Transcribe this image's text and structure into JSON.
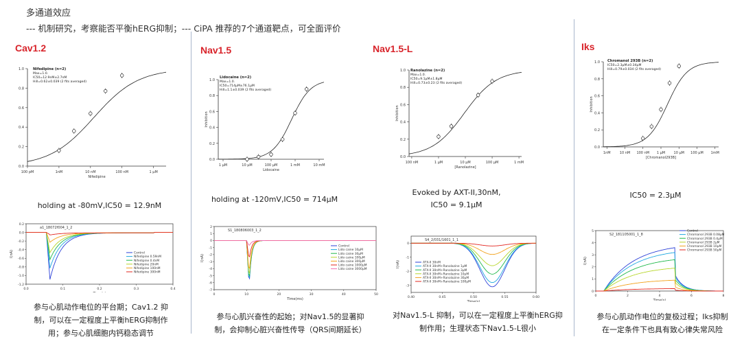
{
  "header": {
    "title": "多通道效应",
    "subtitle": "--- 机制研究，考察能否平衡hERG抑制；--- CiPA 推荐的7个通道靶点，可全面评价"
  },
  "panels": [
    {
      "title": "Cav1.2",
      "caption": [
        "holding at -80mV,IC50 = 12.9nM"
      ],
      "description": [
        "参与心肌动作电位的平台期；Cav1.2 抑",
        "制，可以在一定程度上平衡hERG抑制作",
        "用；参与心肌细胞内钙稳态调节"
      ]
    },
    {
      "title": "Nav1.5",
      "caption": [
        "holding at -120mV,IC50 = 714μM"
      ],
      "description": [
        "参与心肌兴奋性的起始；对Nav1.5的显著抑",
        "制，会抑制心脏兴奋性传导（QRS间期延长）"
      ]
    },
    {
      "title": "Nav1.5-L",
      "caption": [
        "Evoked by AXT-II,30nM,",
        "IC50 = 9.1μM"
      ],
      "description": [
        "对Nav1.5-L 抑制，可以在一定程度上平衡hERG抑",
        "制作用；生理状态下Nav1.5-L很小"
      ]
    },
    {
      "title": "Iks",
      "caption": [
        "IC50 = 2.3μM"
      ],
      "description": [
        "参与心肌动作电位的复极过程；Iks抑制",
        "在一定条件下也具有致心律失常风险"
      ]
    }
  ],
  "chart_data": [
    {
      "type": "scatter",
      "panel": "Cav1.2",
      "fit": "hill",
      "x_scale": "log",
      "xlabel": "Nifedipine",
      "x_tick_labels": [
        "100 pM",
        "1nM",
        "10 nM",
        "100 nM",
        "1 μM"
      ],
      "y_tick_labels": [
        "0.0",
        "0.2",
        "0.4",
        "0.6",
        "0.8",
        "1.0"
      ],
      "ylim": [
        0,
        1
      ],
      "legend_lines": [
        "Nifedipine (n=2)",
        "Max=1.0.",
        "IC50=12.9nM±2.7nM",
        "Hill=0.62±0.039 (2 fits averaged)"
      ],
      "x": [
        "1nM",
        "3nM",
        "10nM",
        "30nM",
        "100nM"
      ],
      "y": [
        0.16,
        0.36,
        0.54,
        0.77,
        0.93
      ],
      "ic50": "12.9nM",
      "hill": 0.62
    },
    {
      "type": "scatter",
      "panel": "Nav1.5",
      "fit": "hill",
      "x_scale": "log",
      "xlabel": "Lidocaine",
      "ylabel": "Inhibition",
      "x_tick_labels": [
        "1 μM",
        "10 μM",
        "100 μM",
        "1 mM",
        "10 mM"
      ],
      "y_tick_labels": [
        "0.0",
        "0.2",
        "0.4",
        "0.6",
        "0.8",
        "1.0"
      ],
      "ylim": [
        0,
        1
      ],
      "legend_lines": [
        "Lidocaine (n=2)",
        "Max=1.0.",
        "IC50=714μM±76.1μM",
        "Hill=1.1±0.039 (2 fits averaged)"
      ],
      "x": [
        "10μM",
        "30μM",
        "100μM",
        "300μM",
        "1000μM",
        "3000μM"
      ],
      "y": [
        0.0,
        0.03,
        0.06,
        0.25,
        0.58,
        0.88
      ],
      "ic50": "714μM",
      "hill": 1.1
    },
    {
      "type": "scatter",
      "panel": "Nav1.5-L",
      "fit": "hill",
      "x_scale": "log",
      "xlabel": "[Ranolazine]",
      "ylabel": "Inhibition",
      "x_tick_labels": [
        "100 nM",
        "1 μM",
        "10 μM",
        "100 μM",
        "1 mM"
      ],
      "y_tick_labels": [
        "0.0",
        "0.2",
        "0.4",
        "0.6",
        "0.8",
        "1.0"
      ],
      "ylim": [
        0,
        1
      ],
      "legend_lines": [
        "Ranolazine (n=2)",
        "Max=1.0.",
        "IC50=9.1μM±1.8μM",
        "Hill=0.73±0.23 (2 fits averaged)"
      ],
      "x": [
        "1μM",
        "3μM",
        "30μM",
        "100μM"
      ],
      "y": [
        0.23,
        0.35,
        0.71,
        0.87
      ],
      "ic50": "9.1μM",
      "hill": 0.73
    },
    {
      "type": "scatter",
      "panel": "Iks",
      "fit": "hill",
      "x_scale": "log",
      "xlabel": "[Chromanol293B]",
      "ylabel": "Inhibition",
      "x_tick_labels": [
        "1nM",
        "10 nM",
        "100 nM",
        "1 μM",
        "10 μM",
        "100 μM",
        "1mM"
      ],
      "y_tick_labels": [
        "0.0",
        "0.2",
        "0.4",
        "0.6",
        "0.8",
        "1.0"
      ],
      "ylim": [
        0,
        1
      ],
      "legend_lines": [
        "Chromanol 293B (n=2)",
        "IC50=2.3μM±0.34μM",
        "Hill=0.79±0.034 (2 fits averaged)"
      ],
      "x": [
        "100nM",
        "300nM",
        "1μM",
        "3μM",
        "10μM"
      ],
      "y": [
        0.1,
        0.24,
        0.44,
        0.75,
        0.95
      ],
      "ic50": "2.3μM",
      "hill": 0.79
    },
    {
      "type": "line",
      "panel": "Cav1.2",
      "title": "a1_18072f004_1_2",
      "xlabel": "Time(s)",
      "ylabel": "I(nA)",
      "xlim": [
        0,
        0.4
      ],
      "ylim": [
        -1.2,
        0.2
      ],
      "x_tick_labels": [
        "0.0",
        "0.1",
        "0.2",
        "0.3",
        "0.4"
      ],
      "y_tick_labels": [
        "0.2",
        "0.0",
        "-0.2",
        "-0.4",
        "-0.6",
        "-0.8",
        "-1.0",
        "-1.2"
      ],
      "series": [
        {
          "name": "Control",
          "color": "#2a3fd8",
          "peak": -1.08
        },
        {
          "name": "Nifedipine 0.59nM",
          "color": "#1ea8e0",
          "peak": -0.82
        },
        {
          "name": "Nifedipine 0.4nM",
          "color": "#1fb84a",
          "peak": -0.62
        },
        {
          "name": "Nifedipine 20nM",
          "color": "#b7d62a",
          "peak": -0.46
        },
        {
          "name": "Nifedipine 100nM",
          "color": "#f2a11a",
          "peak": -0.22
        },
        {
          "name": "Nifedipine 300nM",
          "color": "#e2241e",
          "peak": -0.05
        }
      ]
    },
    {
      "type": "line",
      "panel": "Nav1.5",
      "title": "S1_180806003_1_2",
      "xlabel": "Time(ms)",
      "ylabel": "I(nA)",
      "xlim": [
        0,
        50
      ],
      "ylim": [
        -7,
        2
      ],
      "x_tick_labels": [
        "0",
        "10",
        "20",
        "30",
        "40",
        "50"
      ],
      "y_tick_labels": [
        "2",
        "1",
        "0",
        "-1",
        "-2",
        "-3",
        "-4",
        "-5",
        "-6",
        "-7"
      ],
      "series": [
        {
          "name": "Control",
          "color": "#2a3fd8",
          "peak": -6.6
        },
        {
          "name": "Lido caine 10μM",
          "color": "#1ea8e0",
          "peak": -6.4
        },
        {
          "name": "Lido caine 30μM",
          "color": "#1fb84a",
          "peak": -6.1
        },
        {
          "name": "Lido caine 100μM",
          "color": "#b7d62a",
          "peak": -5.6
        },
        {
          "name": "Lido caine 300μM",
          "color": "#f2a11a",
          "peak": -4.8
        },
        {
          "name": "Lido caine 1000μM",
          "color": "#e2241e",
          "peak": -2.8
        },
        {
          "name": "Lido caine 3000μM",
          "color": "#f06fb0",
          "peak": -0.8
        }
      ]
    },
    {
      "type": "line",
      "panel": "Nav1.5-L",
      "title": "S4_2/031/1601_1_1",
      "xlabel": "Time(s)",
      "ylabel": "I(nA)",
      "xlim": [
        0.4,
        0.6
      ],
      "ylim": [
        -3.5,
        0.5
      ],
      "x_tick_labels": [
        "0.40",
        "0.45",
        "0.50",
        "0.55",
        "0.60"
      ],
      "y_tick_labels": [
        "0",
        "-1",
        "-2",
        "-3"
      ],
      "series": [
        {
          "name": "ATX-II 30nM",
          "color": "#2a3fd8",
          "peak": -3.1
        },
        {
          "name": "ATX-II 30nM+Ranolazine 1μM",
          "color": "#1ea8e0",
          "peak": -2.8
        },
        {
          "name": "ATX-II 30nM+Ranolazine 3μM",
          "color": "#1fb84a",
          "peak": -2.2
        },
        {
          "name": "ATX-II 30nM+Ranolazine 10μM",
          "color": "#b7d62a",
          "peak": -1.6
        },
        {
          "name": "ATX-II 30nM+Ranolazine 30μM",
          "color": "#f2a11a",
          "peak": -0.8
        },
        {
          "name": "ATX-II 30nM+Ranolazine 100μM",
          "color": "#e2241e",
          "peak": -0.2
        }
      ]
    },
    {
      "type": "line",
      "panel": "Iks",
      "title": "S2_181105001_1_8",
      "xlabel": "Time(s)",
      "ylabel": "I(nA)",
      "xlim": [
        0,
        8
      ],
      "ylim": [
        0,
        5
      ],
      "x_tick_labels": [
        "0",
        "2",
        "4",
        "6",
        "8"
      ],
      "y_tick_labels": [
        "5",
        "4",
        "3",
        "2",
        "1",
        "0"
      ],
      "series": [
        {
          "name": "Control",
          "color": "#2a3fd8",
          "end": 3.6
        },
        {
          "name": "Chromanol 293B 0.08μM",
          "color": "#1ea8e0",
          "end": 3.2
        },
        {
          "name": "Chromanol 293B 0.4μM",
          "color": "#1fb84a",
          "end": 2.6
        },
        {
          "name": "Chromanol 293B 2μM",
          "color": "#b7d62a",
          "end": 1.9
        },
        {
          "name": "Chromanol 293B 10μM",
          "color": "#f2a11a",
          "end": 0.9
        },
        {
          "name": "Chromanol 293B 50μM",
          "color": "#e2241e",
          "end": 0.2
        }
      ]
    }
  ]
}
